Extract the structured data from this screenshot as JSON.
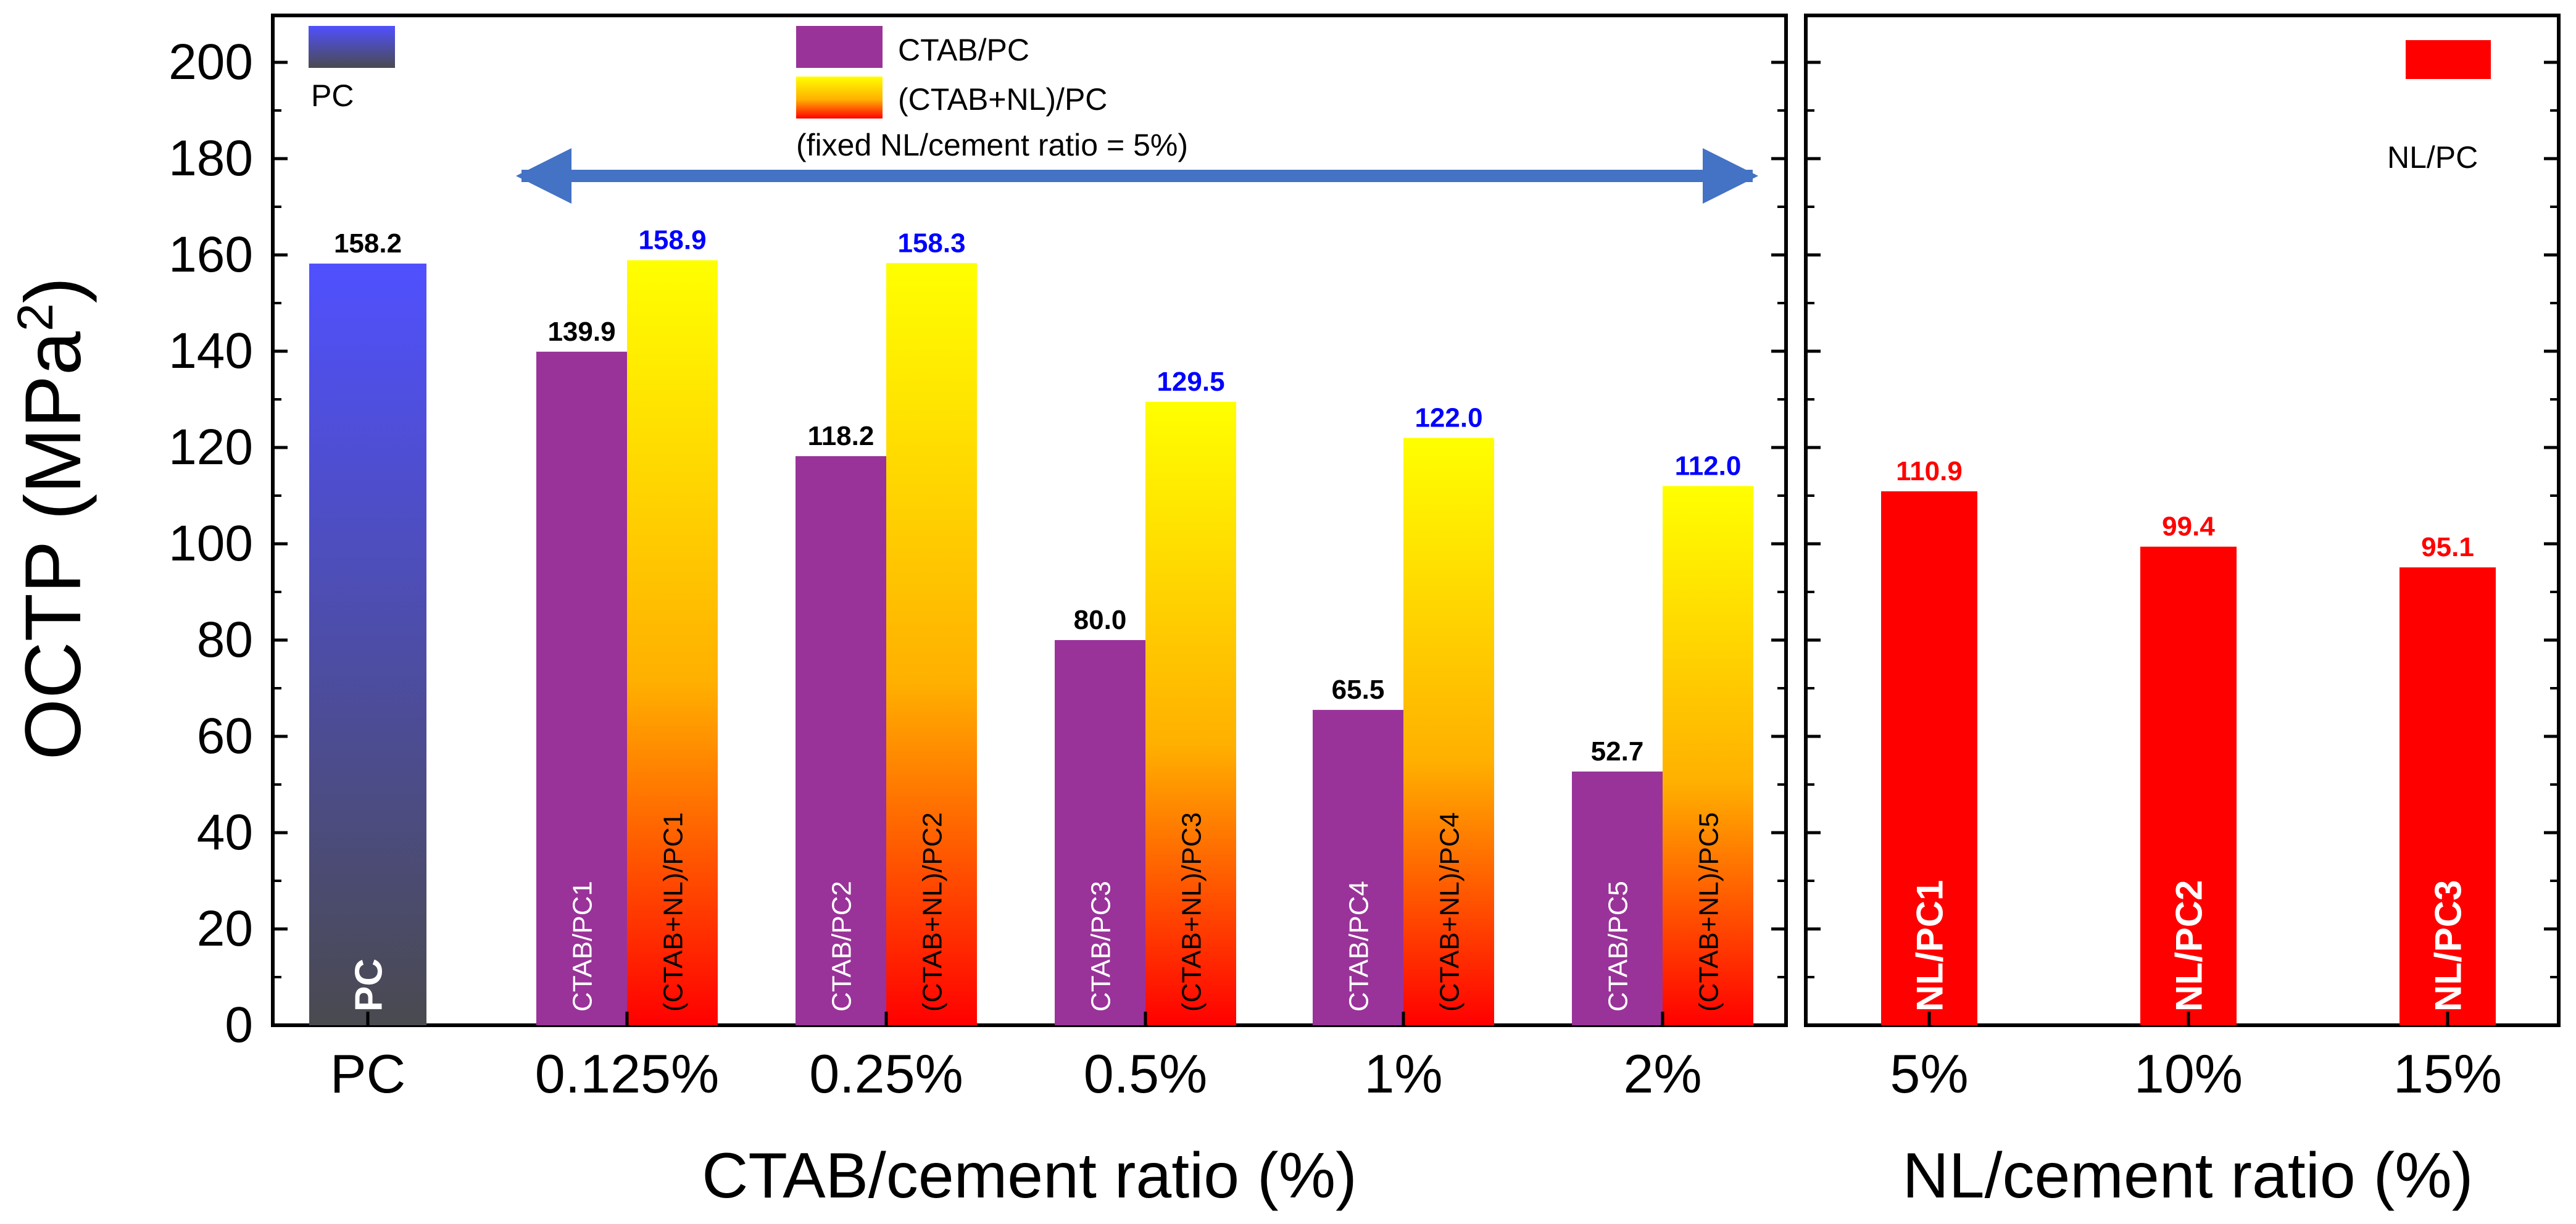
{
  "chart_data": {
    "type": "bar",
    "ylabel": "OCTP (MPa",
    "ylabel_sup": "2",
    "ylabel_close": ")",
    "ylim": [
      0,
      210
    ],
    "yticks": [
      0,
      20,
      40,
      60,
      80,
      100,
      120,
      140,
      160,
      180,
      200
    ],
    "panels": [
      {
        "xlabel": "CTAB/cement ratio (%)",
        "categories": [
          "PC",
          "0.125%",
          "0.25%",
          "0.5%",
          "1%",
          "2%"
        ],
        "annotation": "(fixed NL/cement ratio = 5%)",
        "series": [
          {
            "name": "PC",
            "legend": "PC",
            "colors": [
              "#5050ff",
              "#4a4a50"
            ],
            "category_index": [
              0
            ],
            "values": [
              158.2
            ],
            "value_labels": [
              "158.2"
            ],
            "bar_labels": [
              "PC"
            ],
            "value_color": "#000000"
          },
          {
            "name": "CTAB/PC",
            "legend": "CTAB/PC",
            "colors": [
              "#993399"
            ],
            "category_index": [
              1,
              2,
              3,
              4,
              5
            ],
            "values": [
              139.9,
              118.2,
              80.0,
              65.5,
              52.7
            ],
            "value_labels": [
              "139.9",
              "118.2",
              "80.0",
              "65.5",
              "52.7"
            ],
            "bar_labels": [
              "CTAB/PC1",
              "CTAB/PC2",
              "CTAB/PC3",
              "CTAB/PC4",
              "CTAB/PC5"
            ],
            "value_color": "#000000"
          },
          {
            "name": "(CTAB+NL)/PC",
            "legend": "(CTAB+NL)/PC",
            "colors": [
              "#ffff00",
              "#ff0000"
            ],
            "category_index": [
              1,
              2,
              3,
              4,
              5
            ],
            "values": [
              158.9,
              158.3,
              129.5,
              122.0,
              112.0
            ],
            "value_labels": [
              "158.9",
              "158.3",
              "129.5",
              "122.0",
              "112.0"
            ],
            "bar_labels": [
              "(CTAB+NL)/PC1",
              "(CTAB+NL)/PC2",
              "(CTAB+NL)/PC3",
              "(CTAB+NL)/PC4",
              "(CTAB+NL)/PC5"
            ],
            "value_color": "#0000ff"
          }
        ]
      },
      {
        "xlabel": "NL/cement ratio (%)",
        "categories": [
          "5%",
          "10%",
          "15%"
        ],
        "series": [
          {
            "name": "NL/PC",
            "legend": "NL/PC",
            "colors": [
              "#ff0000"
            ],
            "category_index": [
              0,
              1,
              2
            ],
            "values": [
              110.9,
              99.4,
              95.1
            ],
            "value_labels": [
              "110.9",
              "99.4",
              "95.1"
            ],
            "bar_labels": [
              "NL/PC1",
              "NL/PC2",
              "NL/PC3"
            ],
            "value_color": "#ff0000"
          }
        ]
      }
    ],
    "arrow_color": "#4472c4"
  }
}
